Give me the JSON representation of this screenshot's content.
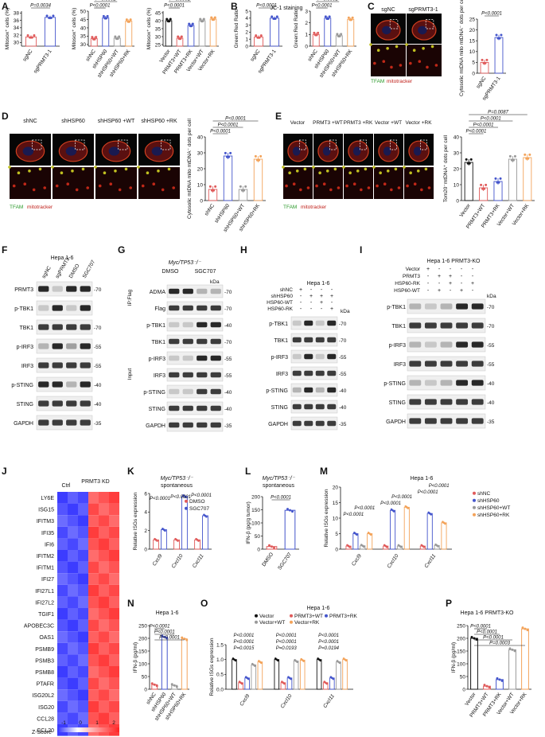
{
  "panels": {
    "A": {
      "letter": "A",
      "plots": [
        {
          "ylabel": "Mitosox⁺ cells (%)",
          "yticks": [
            "30",
            "32",
            "34",
            "36",
            "38"
          ],
          "ymin": 29,
          "ymax": 38.5,
          "groups": [
            "sgNC",
            "sgPRMT3-1"
          ],
          "means": [
            31.5,
            36.8
          ],
          "colors": [
            "#e05a5a",
            "#4455cc"
          ],
          "pvals": [
            {
              "text": "P=0.0034"
            }
          ]
        },
        {
          "ylabel": "Mitosox⁺ cells (%)",
          "yticks": [
            "30",
            "35",
            "40",
            "45",
            "50"
          ],
          "ymin": 29,
          "ymax": 50,
          "groups": [
            "shNC",
            "shHSP60",
            "shHSP60+WT",
            "shHSP60+RK"
          ],
          "means": [
            33.5,
            46,
            33.8,
            44
          ],
          "colors": [
            "#e05a5a",
            "#4455cc",
            "#999999",
            "#f3a35a"
          ],
          "pvals": [
            {
              "text": "P<0.0001"
            },
            {
              "text": "P=0.0002"
            },
            {
              "text": "P=0.0007"
            }
          ]
        },
        {
          "ylabel": "Mitosox⁺ cells (%)",
          "yticks": [
            "25",
            "30",
            "35",
            "40",
            "45"
          ],
          "ymin": 24,
          "ymax": 46,
          "groups": [
            "Vector",
            "PRMT3+WT",
            "PRMT3+RK",
            "Vector+WT",
            "Vector+RK"
          ],
          "means": [
            40,
            29,
            37,
            40,
            41
          ],
          "colors": [
            "#111111",
            "#e05a5a",
            "#4455cc",
            "#999999",
            "#f3a35a"
          ],
          "pvals": [
            {
              "text": "P<0.0001"
            },
            {
              "text": "P<0.0001"
            },
            {
              "text": "P<0.0001"
            },
            {
              "text": "P=0.0004"
            }
          ]
        }
      ]
    },
    "B": {
      "letter": "B",
      "title": "JC-1 staining",
      "plots": [
        {
          "ylabel": "Green:Red Ratio",
          "yticks": [
            "0",
            "1",
            "2",
            "3",
            "4",
            "5"
          ],
          "ymin": 0,
          "ymax": 5,
          "groups": [
            "sgNC",
            "sgPRMT3-1"
          ],
          "means": [
            1.3,
            4.0
          ],
          "colors": [
            "#e05a5a",
            "#4455cc"
          ],
          "pvals": [
            {
              "text": "P<0.0001"
            }
          ]
        },
        {
          "ylabel": "Green:Red Ratio",
          "yticks": [
            "0",
            "1",
            "2",
            "3"
          ],
          "ymin": 0,
          "ymax": 3,
          "groups": [
            "shNC",
            "shHSP60",
            "shHSP60+WT",
            "shHSP60+RK"
          ],
          "means": [
            1.0,
            2.4,
            0.9,
            2.3
          ],
          "colors": [
            "#e05a5a",
            "#4455cc",
            "#999999",
            "#f3a35a"
          ],
          "pvals": [
            {
              "text": "P<0.0001"
            },
            {
              "text": "P<0.0001"
            }
          ]
        }
      ]
    },
    "C": {
      "letter": "C",
      "img_labels": [
        "sgNC",
        "sgPRMT3-1"
      ],
      "stain": {
        "a": "TFAM",
        "b": "mitotracker"
      },
      "plot": {
        "ylabel": "Cytosolic mtDNA mito mtDNA⁻ dots per cell",
        "yticks": [
          "0",
          "5",
          "10",
          "15",
          "20",
          "25"
        ],
        "ymin": 0,
        "ymax": 25,
        "groups": [
          "sgNC",
          "sgPRMT3-1"
        ],
        "means": [
          5,
          16.5
        ],
        "colors": [
          "#e05a5a",
          "#4455cc"
        ],
        "pvals": [
          {
            "text": "P<0.0001"
          }
        ]
      }
    },
    "D": {
      "letter": "D",
      "img_labels": [
        "shNC",
        "shHSP60",
        "shHSP60 +WT",
        "shHSP60 +RK"
      ],
      "stain": {
        "a": "TFAM",
        "b": "mitotracker"
      },
      "plot": {
        "ylabel": "Cytosolic mtDNA mito mtDNA⁻ dots per cell",
        "yticks": [
          "0",
          "10",
          "20",
          "30",
          "40"
        ],
        "ymin": 0,
        "ymax": 40,
        "groups": [
          "shNC",
          "shHSP60",
          "shHSP60+WT",
          "shHSP60+RK"
        ],
        "means": [
          7,
          28,
          7,
          26
        ],
        "colors": [
          "#e05a5a",
          "#4455cc",
          "#999999",
          "#f3a35a"
        ],
        "pvals": [
          {
            "text": "P<0.0001"
          },
          {
            "text": "P<0.0001"
          },
          {
            "text": "P<0.0001"
          }
        ]
      }
    },
    "E": {
      "letter": "E",
      "img_labels": [
        "Vector",
        "PRMT3 +WT",
        "PRMT3 +RK",
        "Vector +WT",
        "Vector +RK"
      ],
      "stain": {
        "a": "TFAM",
        "b": "mitotracker"
      },
      "plot": {
        "ylabel": "Tom20⁻mtDNA⁺ dots per cell",
        "yticks": [
          "0",
          "10",
          "20",
          "30",
          "40"
        ],
        "ymin": 0,
        "ymax": 40,
        "groups": [
          "Vector",
          "PRMT3+WT",
          "PRMT3+RK",
          "Vector+WT",
          "Vector+RK"
        ],
        "means": [
          24,
          8,
          12,
          26,
          27
        ],
        "colors": [
          "#111111",
          "#e05a5a",
          "#4455cc",
          "#999999",
          "#f3a35a"
        ],
        "pvals": [
          {
            "text": "P<0.0001"
          },
          {
            "text": "P<0.0001"
          },
          {
            "text": "P<0.0001"
          },
          {
            "text": "P=0.0087"
          }
        ]
      }
    },
    "F": {
      "letter": "F",
      "title": "Hepa 1-6",
      "lanes": [
        "sgNC",
        "sgPRMT3",
        "DMSO",
        "SGC707"
      ],
      "blots": [
        {
          "name": "PRMT3",
          "kda": "-70"
        },
        {
          "name": "p-TBK1",
          "kda": ""
        },
        {
          "name": "TBK1",
          "kda": "-70"
        },
        {
          "name": "p-IRF3",
          "kda": "-55"
        },
        {
          "name": "IRF3",
          "kda": "-55"
        },
        {
          "name": "p-STING",
          "kda": "-40"
        },
        {
          "name": "STING",
          "kda": "-40"
        },
        {
          "name": "GAPDH",
          "kda": "-35"
        }
      ]
    },
    "G": {
      "letter": "G",
      "title": "Myc/TP53⁻/⁻",
      "lanes": [
        "DMSO",
        "SGC707"
      ],
      "ip_label": "IP:Flag",
      "input_label": "Input",
      "blots": [
        {
          "name": "ADMA",
          "kda": "-70"
        },
        {
          "name": "Flag",
          "kda": "-70"
        },
        {
          "name": "p-TBK1",
          "kda": "-40"
        },
        {
          "name": "TBK1",
          "kda": "-70"
        },
        {
          "name": "p-IRF3",
          "kda": "-55"
        },
        {
          "name": "IRF3",
          "kda": "-55"
        },
        {
          "name": "p-STING",
          "kda": "-40"
        },
        {
          "name": "STING",
          "kda": "-40"
        },
        {
          "name": "GAPDH",
          "kda": "-35"
        }
      ],
      "kda_unit": "kDa"
    },
    "H": {
      "letter": "H",
      "title": "Hepa 1-6",
      "conds": [
        {
          "name": "shNC",
          "signs": [
            "+",
            "-",
            "-",
            "-"
          ]
        },
        {
          "name": "shHSP60",
          "signs": [
            "-",
            "+",
            "+",
            "+"
          ]
        },
        {
          "name": "HSP60-WT",
          "signs": [
            "-",
            "-",
            "+",
            "-"
          ]
        },
        {
          "name": "HSP60-RK",
          "signs": [
            "-",
            "-",
            "-",
            "+"
          ]
        }
      ],
      "kda_unit": "kDa",
      "blots": [
        {
          "name": "p-TBK1",
          "kda": "-70"
        },
        {
          "name": "TBK1",
          "kda": "-70"
        },
        {
          "name": "p-IRF3",
          "kda": "-55"
        },
        {
          "name": "IRF3",
          "kda": "-55"
        },
        {
          "name": "p-STING",
          "kda": "-40"
        },
        {
          "name": "STING",
          "kda": "-40"
        },
        {
          "name": "GAPDH",
          "kda": "-35"
        }
      ]
    },
    "I": {
      "letter": "I",
      "title": "Hepa 1-6 PRMT3-KO",
      "conds": [
        {
          "name": "Vector",
          "signs": [
            "+",
            "-",
            "-",
            "-",
            "-"
          ]
        },
        {
          "name": "PRMT3",
          "signs": [
            "-",
            "+",
            "+",
            "-",
            "-"
          ]
        },
        {
          "name": "HSP60-RK",
          "signs": [
            "-",
            "-",
            "+",
            "-",
            "+"
          ]
        },
        {
          "name": "HSP60-WT",
          "signs": [
            "-",
            "+",
            "-",
            "+",
            "-"
          ]
        }
      ],
      "kda_unit": "kDa",
      "blots": [
        {
          "name": "p-TBK1",
          "kda": "-70"
        },
        {
          "name": "TBK1",
          "kda": "-70"
        },
        {
          "name": "p-IRF3",
          "kda": "-55"
        },
        {
          "name": "IRF3",
          "kda": "-55"
        },
        {
          "name": "p-STING",
          "kda": "-40"
        },
        {
          "name": "STING",
          "kda": "-40"
        },
        {
          "name": "GAPDH",
          "kda": "-35"
        }
      ]
    },
    "J": {
      "letter": "J",
      "col_labels": [
        "Ctrl",
        "PRMT3 KD"
      ],
      "genes": [
        "LY6E",
        "ISG15",
        "IFITM3",
        "IFI35",
        "IFI6",
        "IFITM2",
        "IFITM1",
        "IFI27",
        "IFI27L1",
        "IFI27L2",
        "TGIF1",
        "APOBEC3C",
        "OAS1",
        "PSMB9",
        "PSMB3",
        "PSMB8",
        "PTAFR",
        "ISG20L2",
        "ISG20",
        "CCL28",
        "CCL20"
      ],
      "legend_title": "Z-Score",
      "legend_ticks": [
        "-1",
        "0",
        "1",
        "2"
      ]
    },
    "K": {
      "letter": "K",
      "title": "Myc/TP53⁻/⁻",
      "subtitle": "spontaneous",
      "ylabel": "Relative ISGs expression",
      "yticks": [
        "0",
        "2",
        "4",
        "6"
      ],
      "ymin": 0,
      "ymax": 6,
      "cats": [
        "Cxcl9",
        "Cxcl10",
        "Cxcl11"
      ],
      "series": [
        {
          "name": "DMSO",
          "color": "#e05a5a",
          "values": [
            1,
            1,
            1
          ]
        },
        {
          "name": "SGC707",
          "color": "#4455cc",
          "values": [
            2.1,
            5.7,
            3.6
          ]
        }
      ],
      "pvals": [
        "P<0.0001",
        "P<0.0001",
        "P<0.0001"
      ]
    },
    "L": {
      "letter": "L",
      "title": "Myc/TP53⁻/⁻",
      "subtitle": "spontaneous",
      "ylabel": "IFN-β (pg/g tumor)",
      "yticks": [
        "0",
        "50",
        "100",
        "150",
        "200"
      ],
      "ymin": 0,
      "ymax": 200,
      "groups": [
        "DMSO",
        "SGC707"
      ],
      "means": [
        10,
        148
      ],
      "colors": [
        "#e05a5a",
        "#4455cc"
      ],
      "pvals": [
        "P<0.0001"
      ]
    },
    "M": {
      "letter": "M",
      "title": "Hepa 1-6",
      "ylabel": "Relative ISGs expression",
      "yticks": [
        "0",
        "5",
        "10",
        "15",
        "20"
      ],
      "ymin": 0,
      "ymax": 20,
      "cats": [
        "Cxcl9",
        "Cxcl10",
        "Cxcl11"
      ],
      "series": [
        {
          "name": "shNC",
          "color": "#e05a5a",
          "values": [
            1,
            1,
            1
          ]
        },
        {
          "name": "shHSP60",
          "color": "#4455cc",
          "values": [
            5,
            12.5,
            11.5
          ]
        },
        {
          "name": "shHSP60+WT",
          "color": "#999999",
          "values": [
            1.1,
            1,
            1.2
          ]
        },
        {
          "name": "shHSP60+RK",
          "color": "#f3a35a",
          "values": [
            5,
            13.5,
            8.5
          ]
        }
      ],
      "pvals": [
        "P<0.0001",
        "P<0.0001",
        "P<0.0001",
        "P<0.0001",
        "P<0.0001",
        "P<0.0001"
      ]
    },
    "N": {
      "letter": "N",
      "title": "Hepa 1-6",
      "ylabel": "IFN-β (pg/ml)",
      "yticks": [
        "0",
        "50",
        "100",
        "150",
        "200",
        "250"
      ],
      "ymin": 0,
      "ymax": 250,
      "groups": [
        "shNC",
        "shHSP60",
        "shHSP60+WT",
        "shHSP60+RK"
      ],
      "means": [
        18,
        205,
        15,
        198
      ],
      "colors": [
        "#e05a5a",
        "#4455cc",
        "#999999",
        "#f3a35a"
      ],
      "pvals": [
        "P<0.0001",
        "P<0.0001",
        "P<0.0001"
      ]
    },
    "O": {
      "letter": "O",
      "title": "Hepa 1-6",
      "ylabel": "Relative ISGs expression",
      "yticks": [
        "0.0",
        "0.5",
        "1.0",
        "1.5"
      ],
      "ymin": 0,
      "ymax": 1.5,
      "cats": [
        "Cxcl9",
        "Cxcl10",
        "Cxcl11"
      ],
      "series": [
        {
          "name": "Vector",
          "color": "#111111",
          "values": [
            1.0,
            1.0,
            1.0
          ]
        },
        {
          "name": "PRMT3+WT",
          "color": "#e05a5a",
          "values": [
            0.22,
            0.22,
            0.22
          ]
        },
        {
          "name": "PRMT3+RK",
          "color": "#4455cc",
          "values": [
            0.38,
            0.38,
            0.38
          ]
        },
        {
          "name": "Vector+WT",
          "color": "#999999",
          "values": [
            0.82,
            0.95,
            0.92
          ]
        },
        {
          "name": "Vector+RK",
          "color": "#f3a35a",
          "values": [
            0.92,
            0.98,
            1.0
          ]
        }
      ],
      "pvals": [
        [
          "P<0.0001",
          "P<0.0001",
          "P=0.0015"
        ],
        [
          "P<0.0001",
          "P<0.0001",
          "P=0.0193"
        ],
        [
          "P<0.0001",
          "P<0.0001",
          "P=0.0194"
        ]
      ]
    },
    "P": {
      "letter": "P",
      "title": "Hepa 1-6 PRMT3-KO",
      "ylabel": "IFN-β (pg/ml)",
      "yticks": [
        "0",
        "50",
        "100",
        "150",
        "200",
        "250"
      ],
      "ymin": 0,
      "ymax": 250,
      "groups": [
        "Vector",
        "PRMT3+WT",
        "PRMT3+RK",
        "Vector+WT",
        "Vector+RK"
      ],
      "means": [
        200,
        12,
        38,
        155,
        237
      ],
      "colors": [
        "#111111",
        "#e05a5a",
        "#4455cc",
        "#999999",
        "#f3a35a"
      ],
      "pvals": [
        "P<0.0001",
        "P<0.0001",
        "P<0.0001",
        "P=0.0003"
      ]
    }
  },
  "chart_data": [
    {
      "type": "bar",
      "title": "",
      "ylabel": "Mitosox⁺ cells (%)",
      "categories": [
        "sgNC",
        "sgPRMT3-1"
      ],
      "values": [
        31.5,
        36.8
      ]
    },
    {
      "type": "bar",
      "ylabel": "Mitosox⁺ cells (%)",
      "categories": [
        "shNC",
        "shHSP60",
        "shHSP60+WT",
        "shHSP60+RK"
      ],
      "values": [
        33.5,
        46,
        33.8,
        44
      ]
    },
    {
      "type": "bar",
      "ylabel": "Mitosox⁺ cells (%)",
      "categories": [
        "Vector",
        "PRMT3+WT",
        "PRMT3+RK",
        "Vector+WT",
        "Vector+RK"
      ],
      "values": [
        40,
        29,
        37,
        40,
        41
      ]
    },
    {
      "type": "bar",
      "title": "JC-1 staining",
      "ylabel": "Green:Red Ratio",
      "categories": [
        "sgNC",
        "sgPRMT3-1"
      ],
      "values": [
        1.3,
        4.0
      ]
    },
    {
      "type": "bar",
      "ylabel": "Green:Red Ratio",
      "categories": [
        "shNC",
        "shHSP60",
        "shHSP60+WT",
        "shHSP60+RK"
      ],
      "values": [
        1.0,
        2.4,
        0.9,
        2.3
      ]
    },
    {
      "type": "bar",
      "ylabel": "IFN-β (pg/g tumor)",
      "categories": [
        "DMSO",
        "SGC707"
      ],
      "values": [
        10,
        148
      ]
    },
    {
      "type": "bar",
      "ylabel": "IFN-β (pg/ml)",
      "categories": [
        "shNC",
        "shHSP60",
        "shHSP60+WT",
        "shHSP60+RK"
      ],
      "values": [
        18,
        205,
        15,
        198
      ]
    },
    {
      "type": "bar",
      "ylabel": "IFN-β (pg/ml)",
      "categories": [
        "Vector",
        "PRMT3+WT",
        "PRMT3+RK",
        "Vector+WT",
        "Vector+RK"
      ],
      "values": [
        200,
        12,
        38,
        155,
        237
      ]
    }
  ]
}
